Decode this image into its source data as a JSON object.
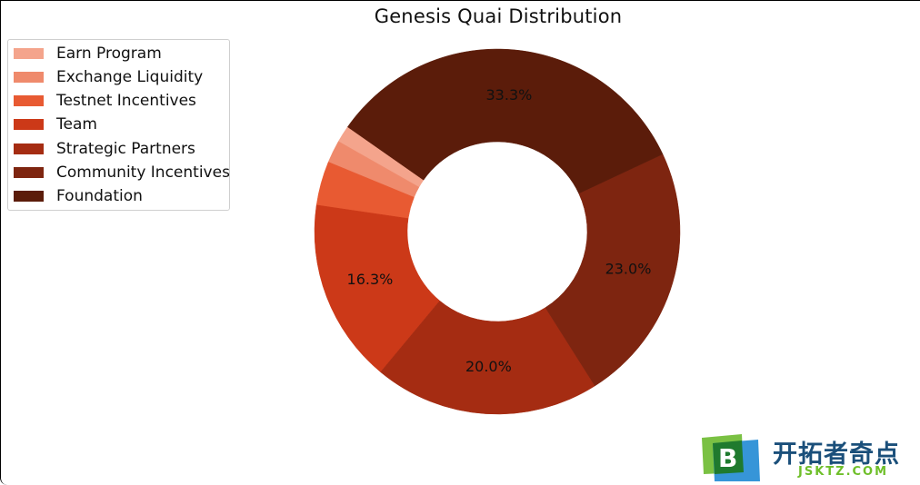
{
  "chart_data": {
    "type": "pie",
    "variant": "donut",
    "title": "Genesis Quai Distribution",
    "categories": [
      "Earn Program",
      "Exchange Liquidity",
      "Testnet Incentives",
      "Team",
      "Strategic Partners",
      "Community Incentives",
      "Foundation"
    ],
    "values": [
      1.5,
      2.0,
      3.9,
      16.3,
      20.0,
      23.0,
      33.3
    ],
    "percent_labels": [
      "",
      "",
      "",
      "16.3%",
      "20.0%",
      "23.0%",
      "33.3%"
    ],
    "colors": [
      "#f4a48c",
      "#ef8a6c",
      "#e85a32",
      "#cc3918",
      "#a52c12",
      "#7e2510",
      "#5b1c0a"
    ],
    "legend_position": "upper-left",
    "start_angle_deg": 145,
    "direction": "counterclockwise"
  },
  "watermark": {
    "logo_letter": "B",
    "text": "开拓者奇点",
    "subtext": "JSKTZ.COM",
    "colors": {
      "green": "#7ac143",
      "blue": "#2b8fd6",
      "text": "#1a4f7a",
      "sub": "#6fbf2a"
    }
  }
}
